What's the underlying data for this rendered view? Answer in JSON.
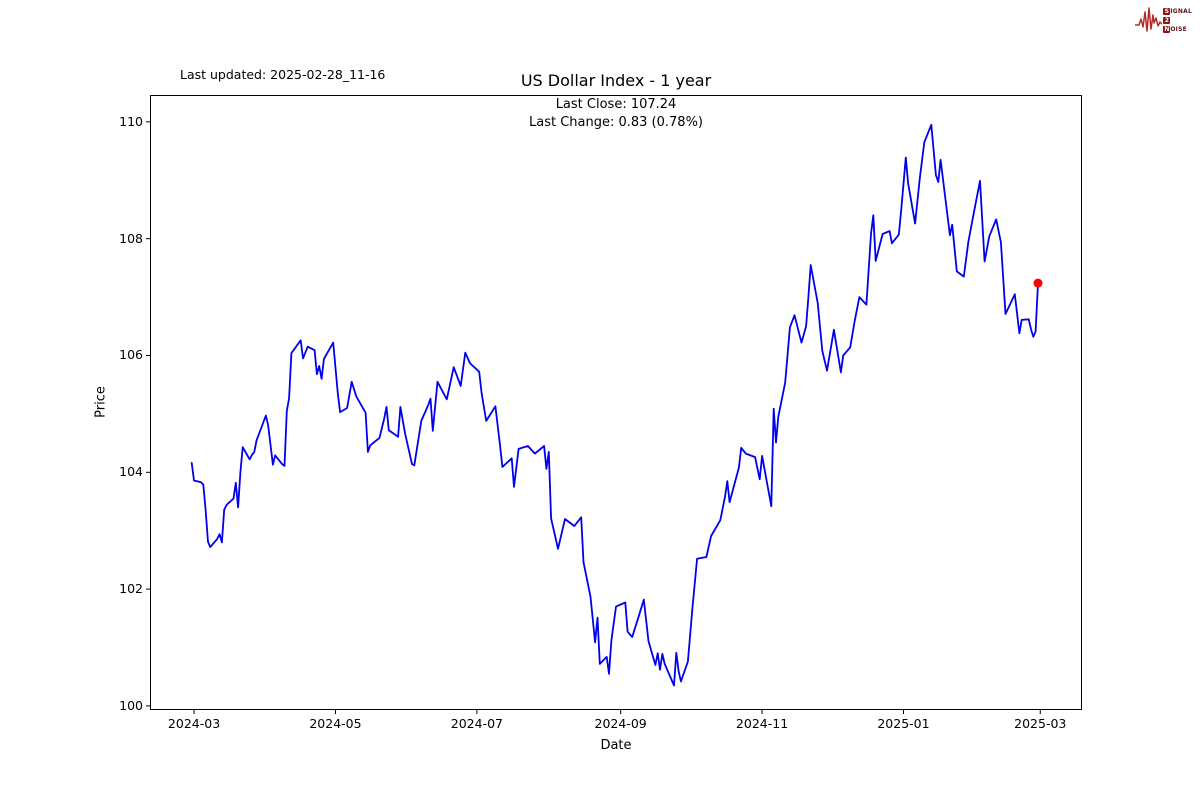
{
  "header": {
    "last_updated": "Last updated: 2025-02-28_11-16",
    "title": "US Dollar Index - 1 year",
    "subtitle_close": "Last Close: 107.24",
    "subtitle_change": "Last Change: 0.83 (0.78%)"
  },
  "logo": {
    "signal_initial": "S",
    "signal_rest": "IGNAL",
    "middle": "2",
    "noise_initial": "N",
    "noise_rest": "OISE",
    "wave_color": "#b82a28",
    "box_color": "#8b1616",
    "text_color": "#5c1212"
  },
  "chart_data": {
    "type": "line",
    "title": "US Dollar Index - 1 year",
    "xlabel": "Date",
    "ylabel": "Price",
    "last_close": 107.24,
    "last_change": "0.83 (0.78%)",
    "line_color": "#0000ee",
    "marker_color": "#ff0000",
    "axis_color": "#000000",
    "grid": false,
    "legend": "none",
    "x_tick_labels": [
      "2024-03",
      "2024-05",
      "2024-07",
      "2024-09",
      "2024-11",
      "2025-01",
      "2025-03"
    ],
    "x_tick_days": [
      1,
      62,
      123,
      185,
      246,
      307,
      366
    ],
    "y_ticks": [
      100,
      102,
      104,
      106,
      108,
      110
    ],
    "epoch_date": "2024-02-29",
    "xlim_days": [
      -18,
      384
    ],
    "ylim": [
      99.93,
      110.46
    ],
    "series": [
      {
        "name": "US Dollar Index",
        "points": [
          [
            "2024-02-29",
            104.16
          ],
          [
            "2024-03-01",
            103.86
          ],
          [
            "2024-03-04",
            103.83
          ],
          [
            "2024-03-05",
            103.79
          ],
          [
            "2024-03-06",
            103.36
          ],
          [
            "2024-03-07",
            102.81
          ],
          [
            "2024-03-08",
            102.72
          ],
          [
            "2024-03-11",
            102.86
          ],
          [
            "2024-03-12",
            102.94
          ],
          [
            "2024-03-13",
            102.8
          ],
          [
            "2024-03-14",
            103.36
          ],
          [
            "2024-03-15",
            103.44
          ],
          [
            "2024-03-18",
            103.55
          ],
          [
            "2024-03-19",
            103.82
          ],
          [
            "2024-03-20",
            103.4
          ],
          [
            "2024-03-21",
            104.0
          ],
          [
            "2024-03-22",
            104.43
          ],
          [
            "2024-03-25",
            104.22
          ],
          [
            "2024-03-26",
            104.3
          ],
          [
            "2024-03-27",
            104.35
          ],
          [
            "2024-03-28",
            104.55
          ],
          [
            "2024-04-01",
            104.97
          ],
          [
            "2024-04-02",
            104.8
          ],
          [
            "2024-04-04",
            104.13
          ],
          [
            "2024-04-05",
            104.29
          ],
          [
            "2024-04-08",
            104.14
          ],
          [
            "2024-04-09",
            104.11
          ],
          [
            "2024-04-10",
            105.05
          ],
          [
            "2024-04-11",
            105.27
          ],
          [
            "2024-04-12",
            106.04
          ],
          [
            "2024-04-16",
            106.26
          ],
          [
            "2024-04-17",
            105.95
          ],
          [
            "2024-04-19",
            106.15
          ],
          [
            "2024-04-22",
            106.09
          ],
          [
            "2024-04-23",
            105.68
          ],
          [
            "2024-04-24",
            105.82
          ],
          [
            "2024-04-25",
            105.6
          ],
          [
            "2024-04-26",
            105.94
          ],
          [
            "2024-04-30",
            106.22
          ],
          [
            "2024-05-02",
            105.35
          ],
          [
            "2024-05-03",
            105.03
          ],
          [
            "2024-05-06",
            105.1
          ],
          [
            "2024-05-08",
            105.55
          ],
          [
            "2024-05-10",
            105.3
          ],
          [
            "2024-05-14",
            105.02
          ],
          [
            "2024-05-15",
            104.35
          ],
          [
            "2024-05-16",
            104.46
          ],
          [
            "2024-05-20",
            104.59
          ],
          [
            "2024-05-22",
            104.92
          ],
          [
            "2024-05-23",
            105.12
          ],
          [
            "2024-05-24",
            104.72
          ],
          [
            "2024-05-28",
            104.61
          ],
          [
            "2024-05-29",
            105.12
          ],
          [
            "2024-05-31",
            104.67
          ],
          [
            "2024-06-03",
            104.14
          ],
          [
            "2024-06-04",
            104.12
          ],
          [
            "2024-06-07",
            104.88
          ],
          [
            "2024-06-10",
            105.15
          ],
          [
            "2024-06-11",
            105.26
          ],
          [
            "2024-06-12",
            104.71
          ],
          [
            "2024-06-14",
            105.55
          ],
          [
            "2024-06-18",
            105.25
          ],
          [
            "2024-06-21",
            105.8
          ],
          [
            "2024-06-24",
            105.48
          ],
          [
            "2024-06-26",
            106.05
          ],
          [
            "2024-06-28",
            105.87
          ],
          [
            "2024-07-02",
            105.72
          ],
          [
            "2024-07-03",
            105.37
          ],
          [
            "2024-07-05",
            104.88
          ],
          [
            "2024-07-09",
            105.13
          ],
          [
            "2024-07-11",
            104.45
          ],
          [
            "2024-07-12",
            104.09
          ],
          [
            "2024-07-16",
            104.24
          ],
          [
            "2024-07-17",
            103.75
          ],
          [
            "2024-07-19",
            104.4
          ],
          [
            "2024-07-23",
            104.45
          ],
          [
            "2024-07-26",
            104.32
          ],
          [
            "2024-07-30",
            104.45
          ],
          [
            "2024-07-31",
            104.06
          ],
          [
            "2024-08-01",
            104.35
          ],
          [
            "2024-08-02",
            103.21
          ],
          [
            "2024-08-05",
            102.69
          ],
          [
            "2024-08-08",
            103.2
          ],
          [
            "2024-08-12",
            103.08
          ],
          [
            "2024-08-15",
            103.23
          ],
          [
            "2024-08-16",
            102.46
          ],
          [
            "2024-08-19",
            101.87
          ],
          [
            "2024-08-21",
            101.09
          ],
          [
            "2024-08-22",
            101.51
          ],
          [
            "2024-08-23",
            100.72
          ],
          [
            "2024-08-26",
            100.84
          ],
          [
            "2024-08-27",
            100.55
          ],
          [
            "2024-08-28",
            101.12
          ],
          [
            "2024-08-30",
            101.7
          ],
          [
            "2024-09-03",
            101.77
          ],
          [
            "2024-09-04",
            101.27
          ],
          [
            "2024-09-06",
            101.18
          ],
          [
            "2024-09-09",
            101.56
          ],
          [
            "2024-09-11",
            101.82
          ],
          [
            "2024-09-13",
            101.11
          ],
          [
            "2024-09-16",
            100.7
          ],
          [
            "2024-09-17",
            100.9
          ],
          [
            "2024-09-18",
            100.62
          ],
          [
            "2024-09-19",
            100.89
          ],
          [
            "2024-09-20",
            100.72
          ],
          [
            "2024-09-24",
            100.35
          ],
          [
            "2024-09-25",
            100.91
          ],
          [
            "2024-09-26",
            100.6
          ],
          [
            "2024-09-27",
            100.42
          ],
          [
            "2024-09-30",
            100.76
          ],
          [
            "2024-10-02",
            101.69
          ],
          [
            "2024-10-04",
            102.52
          ],
          [
            "2024-10-08",
            102.55
          ],
          [
            "2024-10-10",
            102.91
          ],
          [
            "2024-10-14",
            103.18
          ],
          [
            "2024-10-16",
            103.58
          ],
          [
            "2024-10-17",
            103.85
          ],
          [
            "2024-10-18",
            103.49
          ],
          [
            "2024-10-22",
            104.08
          ],
          [
            "2024-10-23",
            104.42
          ],
          [
            "2024-10-25",
            104.32
          ],
          [
            "2024-10-29",
            104.26
          ],
          [
            "2024-10-31",
            103.88
          ],
          [
            "2024-11-01",
            104.28
          ],
          [
            "2024-11-05",
            103.42
          ],
          [
            "2024-11-06",
            105.09
          ],
          [
            "2024-11-07",
            104.51
          ],
          [
            "2024-11-08",
            104.95
          ],
          [
            "2024-11-11",
            105.54
          ],
          [
            "2024-11-13",
            106.48
          ],
          [
            "2024-11-15",
            106.69
          ],
          [
            "2024-11-18",
            106.22
          ],
          [
            "2024-11-20",
            106.5
          ],
          [
            "2024-11-21",
            107.0
          ],
          [
            "2024-11-22",
            107.55
          ],
          [
            "2024-11-25",
            106.9
          ],
          [
            "2024-11-27",
            106.08
          ],
          [
            "2024-11-29",
            105.74
          ],
          [
            "2024-12-02",
            106.44
          ],
          [
            "2024-12-05",
            105.71
          ],
          [
            "2024-12-06",
            106.0
          ],
          [
            "2024-12-09",
            106.14
          ],
          [
            "2024-12-11",
            106.6
          ],
          [
            "2024-12-13",
            107.0
          ],
          [
            "2024-12-16",
            106.87
          ],
          [
            "2024-12-18",
            108.08
          ],
          [
            "2024-12-19",
            108.4
          ],
          [
            "2024-12-20",
            107.62
          ],
          [
            "2024-12-23",
            108.08
          ],
          [
            "2024-12-26",
            108.13
          ],
          [
            "2024-12-27",
            107.92
          ],
          [
            "2024-12-30",
            108.07
          ],
          [
            "2024-12-31",
            108.49
          ],
          [
            "2025-01-02",
            109.39
          ],
          [
            "2025-01-03",
            108.95
          ],
          [
            "2025-01-06",
            108.26
          ],
          [
            "2025-01-08",
            109.02
          ],
          [
            "2025-01-10",
            109.65
          ],
          [
            "2025-01-13",
            109.95
          ],
          [
            "2025-01-15",
            109.09
          ],
          [
            "2025-01-16",
            108.97
          ],
          [
            "2025-01-17",
            109.35
          ],
          [
            "2025-01-21",
            108.06
          ],
          [
            "2025-01-22",
            108.24
          ],
          [
            "2025-01-24",
            107.44
          ],
          [
            "2025-01-27",
            107.35
          ],
          [
            "2025-01-29",
            107.95
          ],
          [
            "2025-01-31",
            108.37
          ],
          [
            "2025-02-03",
            108.99
          ],
          [
            "2025-02-05",
            107.61
          ],
          [
            "2025-02-07",
            108.04
          ],
          [
            "2025-02-10",
            108.33
          ],
          [
            "2025-02-12",
            107.94
          ],
          [
            "2025-02-14",
            106.71
          ],
          [
            "2025-02-18",
            107.05
          ],
          [
            "2025-02-20",
            106.38
          ],
          [
            "2025-02-21",
            106.61
          ],
          [
            "2025-02-24",
            106.62
          ],
          [
            "2025-02-25",
            106.45
          ],
          [
            "2025-02-26",
            106.32
          ],
          [
            "2025-02-27",
            106.41
          ],
          [
            "2025-02-28",
            107.24
          ]
        ]
      }
    ]
  }
}
